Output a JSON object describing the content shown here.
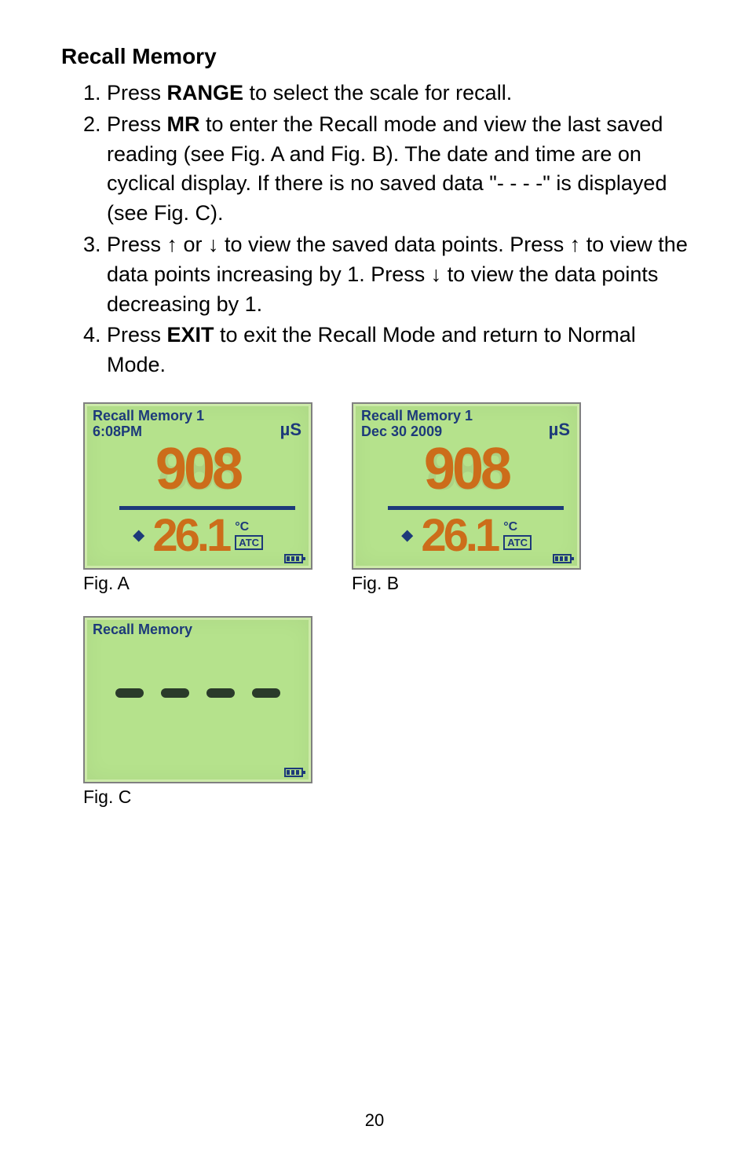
{
  "heading": "Recall Memory",
  "steps": [
    {
      "num": "1.",
      "pre": "Press ",
      "bold": "RANGE",
      "post": " to select the scale for recall."
    },
    {
      "num": "2.",
      "pre": "Press ",
      "bold": "MR",
      "post": " to enter the Recall mode and view the last saved reading (see Fig. A and Fig. B). The date and time are on cyclical display. If there is no saved data \"- - - -\" is displayed (see Fig. C)."
    },
    {
      "num": "3.",
      "full": "Press ↑ or ↓ to view the saved data points. Press ↑ to view the data points increasing by 1. Press ↓ to view the data points decreasing by 1."
    },
    {
      "num": "4.",
      "pre": "Press ",
      "bold": "EXIT",
      "post": " to exit the Recall Mode and return to Normal Mode."
    }
  ],
  "lcd": {
    "a": {
      "title_line1": "Recall Memory 1",
      "title_line2": "6:08PM",
      "unit": "µS",
      "big": "908",
      "sub": "26.1",
      "deg": "°C",
      "atc": "ATC"
    },
    "b": {
      "title_line1": "Recall Memory 1",
      "title_line2": "Dec 30 2009",
      "unit": "µS",
      "big": "908",
      "sub": "26.1",
      "deg": "°C",
      "atc": "ATC"
    },
    "c": {
      "title": "Recall Memory"
    }
  },
  "captions": {
    "a": "Fig. A",
    "b": "Fig. B",
    "c": "Fig. C"
  },
  "page_number": "20",
  "colors": {
    "lcd_bg": "#b5e28c",
    "lcd_text_blue": "#1d3a7a",
    "lcd_digit_orange": "#cc6d1a",
    "page_bg": "#ffffff",
    "text": "#000000"
  }
}
